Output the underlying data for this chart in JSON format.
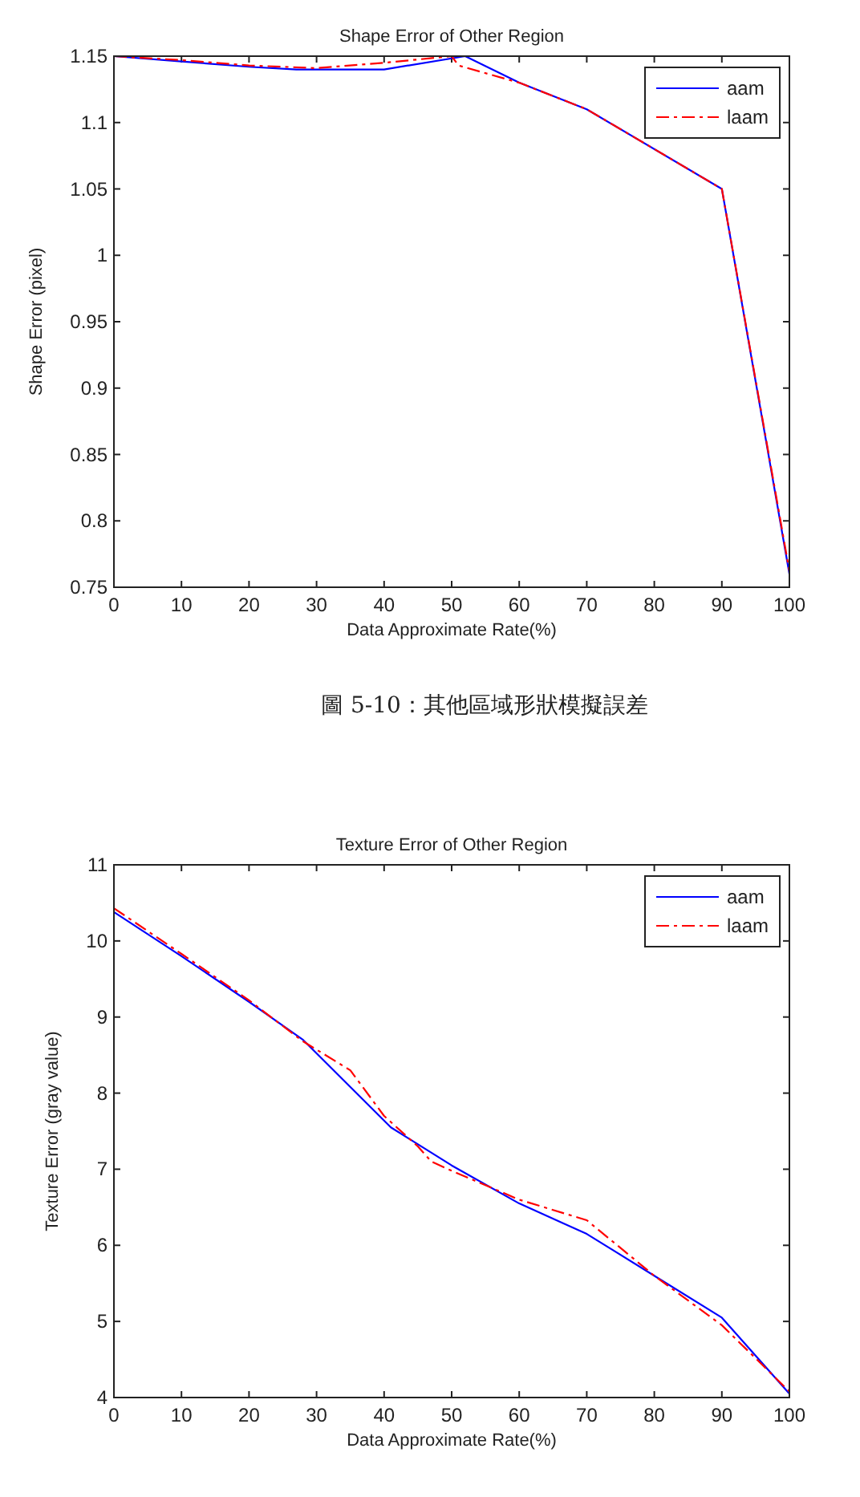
{
  "chart_data": [
    {
      "type": "line",
      "title": "Shape Error of Other Region",
      "xlabel": "Data Approximate Rate(%)",
      "ylabel": "Shape Error (pixel)",
      "annotations": [
        "圖 5-10：其他區域形狀模擬誤差"
      ],
      "xlim": [
        0,
        100
      ],
      "ylim": [
        0.75,
        1.15
      ],
      "xticks": [
        0,
        10,
        20,
        30,
        40,
        50,
        60,
        70,
        80,
        90,
        100
      ],
      "yticks": [
        0.75,
        0.8,
        0.85,
        0.9,
        0.95,
        1,
        1.05,
        1.1,
        1.15
      ],
      "grid": false,
      "legend": "top right",
      "series": [
        {
          "name": "aam",
          "color": "#0000ff",
          "line_style": "solid",
          "x": [
            0,
            10,
            20,
            27,
            40,
            52,
            60,
            70,
            90,
            100
          ],
          "values": [
            1.15,
            1.146,
            1.142,
            1.14,
            1.14,
            1.15,
            1.13,
            1.11,
            1.05,
            0.76
          ]
        },
        {
          "name": "laam",
          "color": "#ff0000",
          "line_style": "dashdot",
          "x": [
            0,
            10,
            20,
            30,
            40,
            50,
            51,
            60,
            70,
            90,
            100
          ],
          "values": [
            1.15,
            1.147,
            1.143,
            1.141,
            1.145,
            1.15,
            1.143,
            1.13,
            1.11,
            1.05,
            0.762
          ]
        }
      ]
    },
    {
      "type": "line",
      "title": "Texture Error of Other Region",
      "xlabel": "Data Approximate Rate(%)",
      "ylabel": "Texture Error (gray value)",
      "xlim": [
        0,
        100
      ],
      "ylim": [
        4,
        11
      ],
      "xticks": [
        0,
        10,
        20,
        30,
        40,
        50,
        60,
        70,
        80,
        90,
        100
      ],
      "yticks": [
        4,
        5,
        6,
        7,
        8,
        9,
        10,
        11
      ],
      "grid": false,
      "legend": "top right",
      "series": [
        {
          "name": "aam",
          "color": "#0000ff",
          "line_style": "solid",
          "x": [
            0,
            10,
            20,
            28,
            41,
            50,
            60,
            70,
            80,
            90,
            100
          ],
          "values": [
            10.38,
            9.8,
            9.2,
            8.7,
            7.55,
            7.05,
            6.55,
            6.15,
            5.6,
            5.05,
            4.05
          ]
        },
        {
          "name": "laam",
          "color": "#ff0000",
          "line_style": "dashdot",
          "x": [
            0,
            10,
            20,
            28,
            35,
            40,
            45,
            47,
            50,
            60,
            70,
            80,
            90,
            100
          ],
          "values": [
            10.43,
            9.83,
            9.22,
            8.68,
            8.3,
            7.7,
            7.3,
            7.1,
            6.98,
            6.6,
            6.33,
            5.6,
            4.95,
            4.08
          ]
        }
      ]
    }
  ]
}
